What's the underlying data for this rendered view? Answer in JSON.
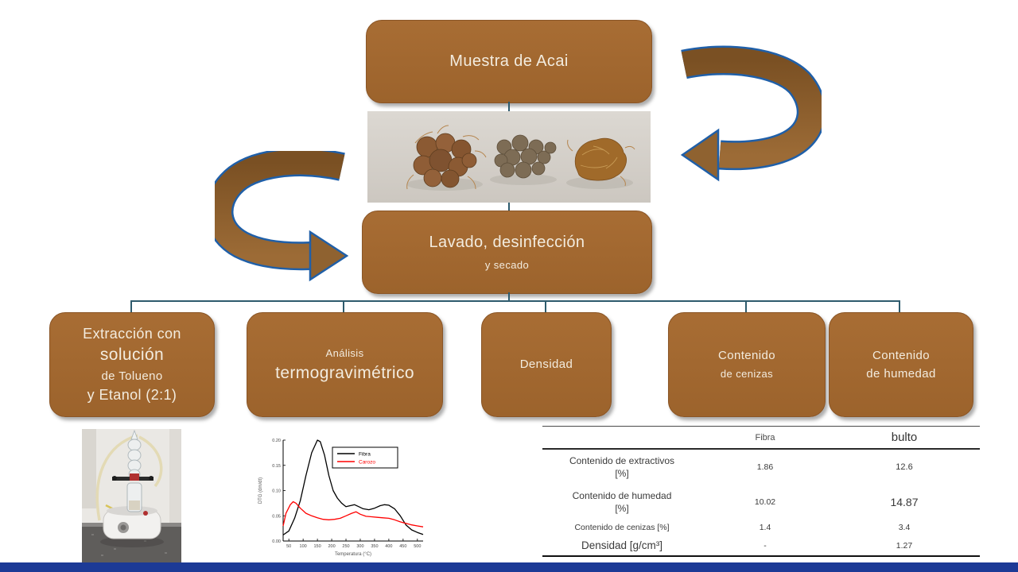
{
  "flowchart": {
    "top_box": "Muestra de Acai",
    "wash_box": {
      "line1": "Lavado, desinfección",
      "line2": "y secado"
    },
    "branches": [
      {
        "lines": [
          "Extracción con",
          "solución",
          "de Tolueno",
          "y Etanol (2:1)"
        ]
      },
      {
        "lines": [
          "Análisis",
          "termogravimétrico"
        ]
      },
      {
        "lines": [
          "Densidad"
        ]
      },
      {
        "lines": [
          "Contenido",
          "de cenizas"
        ]
      },
      {
        "lines": [
          "Contenido",
          "de humedad"
        ]
      }
    ]
  },
  "table": {
    "col_headers": [
      "Fibra",
      "bulto"
    ],
    "rows": [
      {
        "label": "Contenido de extractivos",
        "label2": "[%]",
        "fibra": "1.86",
        "bulto": "12.6"
      },
      {
        "label": "Contenido de humedad",
        "label2": "[%]",
        "fibra": "10.02",
        "bulto": "14.87"
      },
      {
        "label": "Contenido de cenizas [%]",
        "label2": "",
        "fibra": "1.4",
        "bulto": "3.4"
      },
      {
        "label": "Densidad [g/cm³]",
        "label2": "",
        "fibra": "-",
        "bulto": "1.27"
      }
    ]
  },
  "chart_data": {
    "type": "line",
    "title": "",
    "xlabel": "Temperatura (°C)",
    "ylabel": "DTG (dm/dt)",
    "xlim": [
      30,
      520
    ],
    "ylim": [
      0.0,
      0.2
    ],
    "xticks": [
      50,
      100,
      150,
      200,
      250,
      300,
      350,
      400,
      450,
      500
    ],
    "yticks": [
      0.0,
      0.05,
      0.1,
      0.15,
      0.2
    ],
    "grid": false,
    "legend_position": "upper right",
    "series": [
      {
        "name": "Fibra",
        "color": "#000000",
        "points": [
          [
            30,
            0.012
          ],
          [
            50,
            0.02
          ],
          [
            70,
            0.045
          ],
          [
            90,
            0.08
          ],
          [
            110,
            0.13
          ],
          [
            130,
            0.175
          ],
          [
            150,
            0.2
          ],
          [
            160,
            0.197
          ],
          [
            175,
            0.17
          ],
          [
            190,
            0.13
          ],
          [
            205,
            0.1
          ],
          [
            220,
            0.085
          ],
          [
            235,
            0.075
          ],
          [
            250,
            0.068
          ],
          [
            265,
            0.07
          ],
          [
            280,
            0.072
          ],
          [
            295,
            0.068
          ],
          [
            310,
            0.064
          ],
          [
            330,
            0.062
          ],
          [
            350,
            0.065
          ],
          [
            370,
            0.07
          ],
          [
            385,
            0.072
          ],
          [
            400,
            0.071
          ],
          [
            420,
            0.064
          ],
          [
            440,
            0.05
          ],
          [
            460,
            0.032
          ],
          [
            480,
            0.022
          ],
          [
            500,
            0.017
          ],
          [
            520,
            0.013
          ]
        ]
      },
      {
        "name": "Carozo",
        "color": "#ff0000",
        "points": [
          [
            30,
            0.03
          ],
          [
            40,
            0.055
          ],
          [
            55,
            0.072
          ],
          [
            65,
            0.078
          ],
          [
            75,
            0.075
          ],
          [
            90,
            0.065
          ],
          [
            110,
            0.055
          ],
          [
            130,
            0.05
          ],
          [
            150,
            0.046
          ],
          [
            170,
            0.043
          ],
          [
            190,
            0.042
          ],
          [
            210,
            0.043
          ],
          [
            230,
            0.045
          ],
          [
            250,
            0.05
          ],
          [
            270,
            0.055
          ],
          [
            285,
            0.058
          ],
          [
            300,
            0.053
          ],
          [
            320,
            0.049
          ],
          [
            340,
            0.048
          ],
          [
            360,
            0.047
          ],
          [
            380,
            0.046
          ],
          [
            400,
            0.045
          ],
          [
            420,
            0.042
          ],
          [
            440,
            0.038
          ],
          [
            460,
            0.035
          ],
          [
            480,
            0.032
          ],
          [
            500,
            0.03
          ],
          [
            520,
            0.028
          ]
        ]
      }
    ]
  },
  "colors": {
    "box_brown": "#9c632c",
    "arrow_brown_dark": "#7a5023",
    "arrow_brown_light": "#9c6b36",
    "arrow_outline_blue": "#1f5fa8",
    "connector_line": "#2e5b6d",
    "footer_bar": "#1c3a96"
  }
}
